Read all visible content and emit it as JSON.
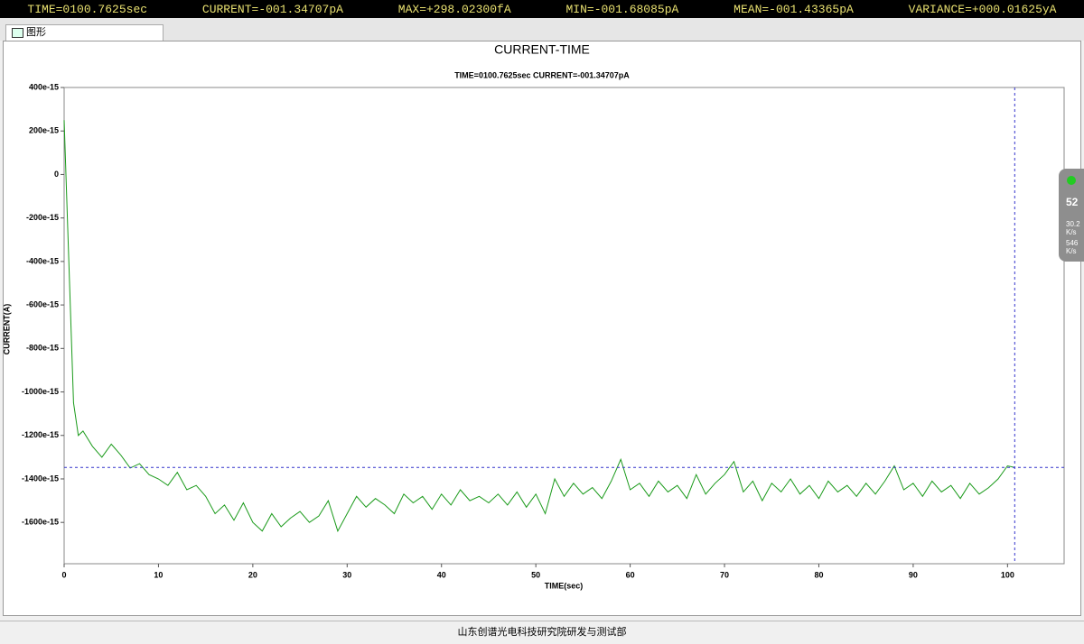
{
  "status_bar": {
    "items": [
      "TIME=0100.7625sec",
      "CURRENT=-001.34707pA",
      "MAX=+298.02300fA",
      "MIN=-001.68085pA",
      "MEAN=-001.43365pA",
      "VARIANCE=+000.01625yA"
    ]
  },
  "tab": {
    "label": "图形"
  },
  "widget": {
    "value": "52",
    "rate1": "30.2",
    "unit1": "K/s",
    "rate2": "546",
    "unit2": "K/s"
  },
  "footer": {
    "text": "山东创谱光电科技研究院研发与测试部"
  },
  "chart_data": {
    "type": "line",
    "title": "CURRENT-TIME",
    "subtitle": "TIME=0100.7625sec CURRENT=-001.34707pA",
    "x_label": "TIME(sec)",
    "y_label": "CURRENT(A)",
    "color": "#1a9a1a",
    "x": [
      0,
      0.5,
      1,
      1.5,
      2,
      3,
      4,
      5,
      6,
      7,
      8,
      9,
      10,
      11,
      12,
      13,
      14,
      15,
      16,
      17,
      18,
      19,
      20,
      21,
      22,
      23,
      24,
      25,
      26,
      27,
      28,
      29,
      30,
      31,
      32,
      33,
      34,
      35,
      36,
      37,
      38,
      39,
      40,
      41,
      42,
      43,
      44,
      45,
      46,
      47,
      48,
      49,
      50,
      51,
      52,
      53,
      54,
      55,
      56,
      57,
      58,
      59,
      60,
      61,
      62,
      63,
      64,
      65,
      66,
      67,
      68,
      69,
      70,
      71,
      72,
      73,
      74,
      75,
      76,
      77,
      78,
      79,
      80,
      81,
      82,
      83,
      84,
      85,
      86,
      87,
      88,
      89,
      90,
      91,
      92,
      93,
      94,
      95,
      96,
      97,
      98,
      99,
      100,
      100.7625
    ],
    "values": [
      250,
      -400,
      -1050,
      -1200,
      -1180,
      -1250,
      -1300,
      -1240,
      -1290,
      -1350,
      -1330,
      -1380,
      -1400,
      -1430,
      -1370,
      -1450,
      -1430,
      -1480,
      -1560,
      -1520,
      -1590,
      -1510,
      -1600,
      -1640,
      -1560,
      -1620,
      -1580,
      -1550,
      -1600,
      -1570,
      -1500,
      -1640,
      -1560,
      -1480,
      -1530,
      -1490,
      -1520,
      -1560,
      -1470,
      -1510,
      -1480,
      -1540,
      -1470,
      -1520,
      -1450,
      -1500,
      -1480,
      -1510,
      -1470,
      -1520,
      -1460,
      -1530,
      -1470,
      -1560,
      -1400,
      -1480,
      -1420,
      -1470,
      -1440,
      -1490,
      -1410,
      -1310,
      -1450,
      -1420,
      -1480,
      -1410,
      -1460,
      -1430,
      -1490,
      -1380,
      -1470,
      -1420,
      -1380,
      -1320,
      -1460,
      -1410,
      -1500,
      -1420,
      -1460,
      -1400,
      -1470,
      -1430,
      -1490,
      -1410,
      -1460,
      -1430,
      -1480,
      -1420,
      -1470,
      -1410,
      -1340,
      -1450,
      -1420,
      -1480,
      -1410,
      -1460,
      -1430,
      -1490,
      -1420,
      -1470,
      -1440,
      -1400,
      -1340,
      -1347.07
    ],
    "cursor": {
      "x": 100.7625,
      "y": -1347.07
    },
    "xlim": [
      0,
      106
    ],
    "ylim": [
      -1790,
      400
    ],
    "xticks": [
      0,
      10,
      20,
      30,
      40,
      50,
      60,
      70,
      80,
      90,
      100
    ],
    "yticks": [
      {
        "value": 400,
        "label": "400e-15"
      },
      {
        "value": 200,
        "label": "200e-15"
      },
      0,
      {
        "value": -200,
        "label": "-200e-15"
      },
      {
        "value": -400,
        "label": "-400e-15"
      },
      {
        "value": -600,
        "label": "-600e-15"
      },
      {
        "value": -800,
        "label": "-800e-15"
      },
      {
        "value": -1000,
        "label": "-1000e-15"
      },
      {
        "value": -1200,
        "label": "-1200e-15"
      },
      {
        "value": -1400,
        "label": "-1400e-15"
      },
      {
        "value": -1600,
        "label": "-1600e-15"
      }
    ]
  }
}
